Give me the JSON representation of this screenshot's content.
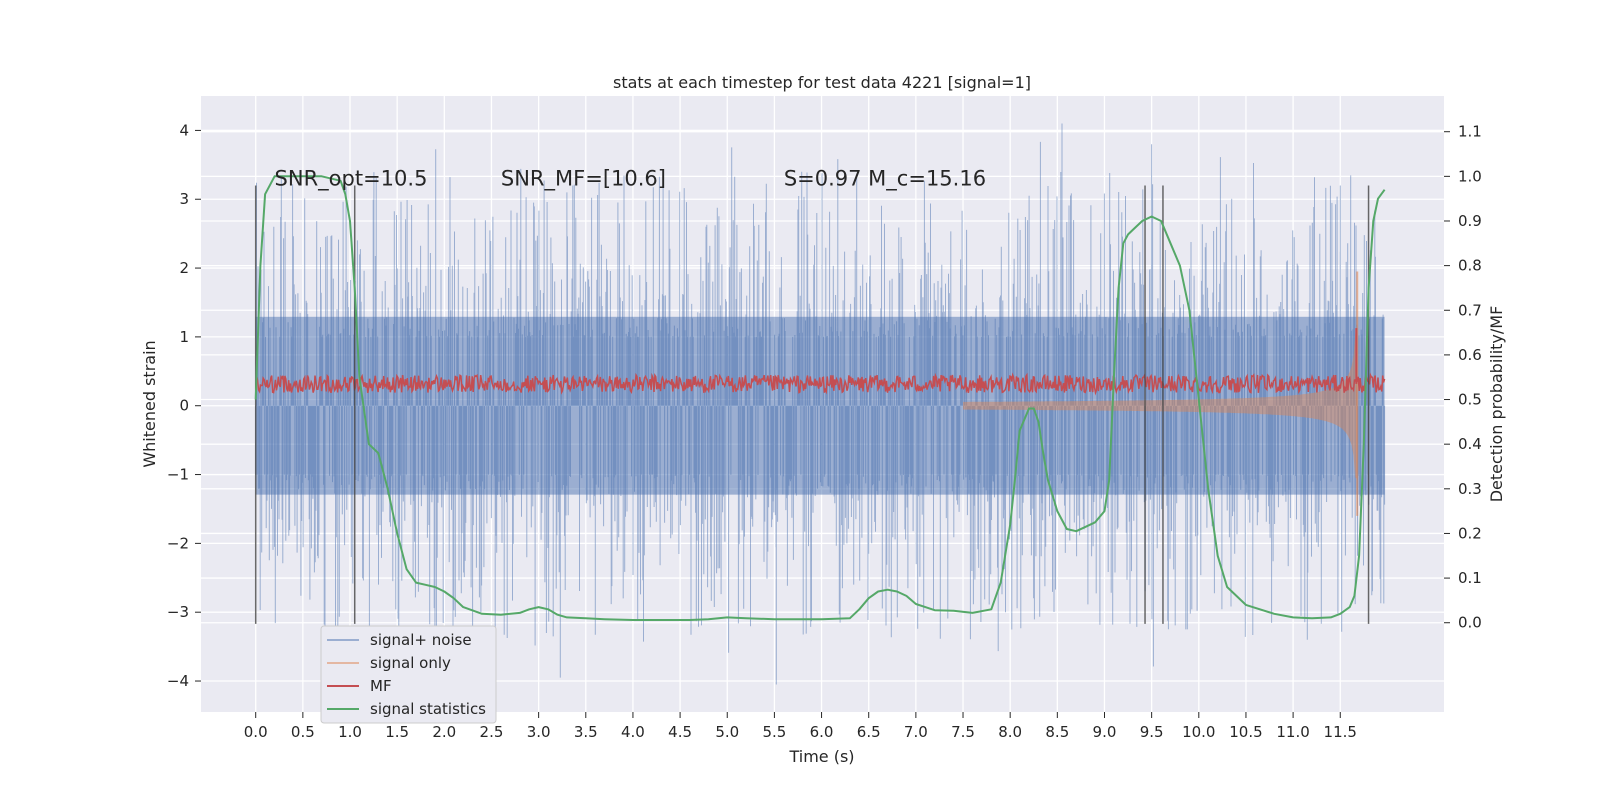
{
  "chart_data": {
    "type": "line",
    "title": "stats at each timestep for test data 4221 [signal=1]",
    "xlabel": "Time (s)",
    "ylabel_left": "Whitened strain",
    "ylabel_right": "Detection probability/MF",
    "xlim": [
      -0.58,
      12.6
    ],
    "ylim_left": [
      -4.45,
      4.5
    ],
    "ylim_right": [
      -0.2,
      1.18
    ],
    "x_ticks": [
      "0.0",
      "0.5",
      "1.0",
      "1.5",
      "2.0",
      "2.5",
      "3.0",
      "3.5",
      "4.0",
      "4.5",
      "5.0",
      "5.5",
      "6.0",
      "6.5",
      "7.0",
      "7.5",
      "8.0",
      "8.5",
      "9.0",
      "9.5",
      "10.0",
      "10.5",
      "11.0",
      "11.5"
    ],
    "y_ticks_left": [
      "−4",
      "−3",
      "−2",
      "−1",
      "0",
      "1",
      "2",
      "3",
      "4"
    ],
    "y_ticks_right": [
      "0.0",
      "0.1",
      "0.2",
      "0.3",
      "0.4",
      "0.5",
      "0.6",
      "0.7",
      "0.8",
      "0.9",
      "1.0",
      "1.1"
    ],
    "grid": true,
    "legend_position": "lower-left",
    "annotations": [
      {
        "text": "SNR_opt=10.5",
        "x": 0.2,
        "y": 3.2
      },
      {
        "text": "SNR_MF=[10.6]",
        "x": 2.6,
        "y": 3.2
      },
      {
        "text": "S=0.97   M_c=15.16",
        "x": 5.6,
        "y": 3.2
      }
    ],
    "vertical_lines": [
      0.0,
      1.05,
      9.43,
      9.62,
      11.8
    ],
    "series": [
      {
        "name": "signal+ noise",
        "color": "#4c72b0",
        "axis": "left",
        "description_values": {
          "band_typical": [
            -1.9,
            1.9
          ],
          "max_peak": 4.1,
          "min_peak": -4.05
        }
      },
      {
        "name": "signal only",
        "color": "#dd8452",
        "axis": "left",
        "description_values": {
          "chirp_end": 11.68,
          "max_amplitude": 1.95
        }
      },
      {
        "name": "MF",
        "color": "#c44e52",
        "axis": "right",
        "description_values": {
          "baseline": 0.535,
          "peak_time": 11.67,
          "peak": 0.66
        }
      },
      {
        "name": "signal statistics",
        "color": "#55a868",
        "axis": "right",
        "x": [
          0.0,
          0.05,
          0.1,
          0.2,
          0.3,
          0.5,
          0.7,
          0.9,
          0.95,
          1.0,
          1.05,
          1.1,
          1.2,
          1.3,
          1.4,
          1.5,
          1.6,
          1.7,
          1.8,
          1.9,
          2.0,
          2.1,
          2.2,
          2.4,
          2.6,
          2.8,
          2.9,
          3.0,
          3.1,
          3.2,
          3.3,
          3.5,
          3.7,
          4.0,
          4.3,
          4.6,
          4.8,
          5.0,
          5.2,
          5.5,
          6.0,
          6.3,
          6.4,
          6.5,
          6.6,
          6.7,
          6.8,
          6.9,
          7.0,
          7.1,
          7.2,
          7.4,
          7.6,
          7.8,
          7.9,
          8.0,
          8.05,
          8.1,
          8.2,
          8.25,
          8.3,
          8.35,
          8.4,
          8.5,
          8.6,
          8.7,
          8.8,
          8.9,
          9.0,
          9.05,
          9.1,
          9.15,
          9.2,
          9.25,
          9.3,
          9.4,
          9.5,
          9.6,
          9.7,
          9.8,
          9.9,
          10.0,
          10.1,
          10.2,
          10.3,
          10.5,
          10.8,
          11.0,
          11.2,
          11.4,
          11.5,
          11.6,
          11.65,
          11.7,
          11.75,
          11.8,
          11.85,
          11.9,
          11.97
        ],
        "y": [
          0.5,
          0.8,
          0.96,
          1.0,
          1.0,
          1.0,
          1.0,
          0.99,
          0.96,
          0.9,
          0.75,
          0.55,
          0.4,
          0.38,
          0.3,
          0.2,
          0.12,
          0.09,
          0.085,
          0.08,
          0.07,
          0.055,
          0.035,
          0.02,
          0.018,
          0.022,
          0.03,
          0.035,
          0.03,
          0.018,
          0.012,
          0.01,
          0.008,
          0.006,
          0.006,
          0.006,
          0.008,
          0.012,
          0.01,
          0.008,
          0.008,
          0.01,
          0.03,
          0.055,
          0.07,
          0.074,
          0.07,
          0.06,
          0.042,
          0.035,
          0.028,
          0.027,
          0.022,
          0.03,
          0.09,
          0.22,
          0.32,
          0.43,
          0.48,
          0.48,
          0.45,
          0.38,
          0.32,
          0.25,
          0.21,
          0.205,
          0.215,
          0.225,
          0.25,
          0.32,
          0.55,
          0.75,
          0.85,
          0.87,
          0.88,
          0.9,
          0.91,
          0.9,
          0.85,
          0.8,
          0.7,
          0.5,
          0.3,
          0.15,
          0.08,
          0.04,
          0.02,
          0.012,
          0.01,
          0.012,
          0.02,
          0.035,
          0.06,
          0.15,
          0.4,
          0.75,
          0.9,
          0.95,
          0.97
        ]
      }
    ]
  }
}
